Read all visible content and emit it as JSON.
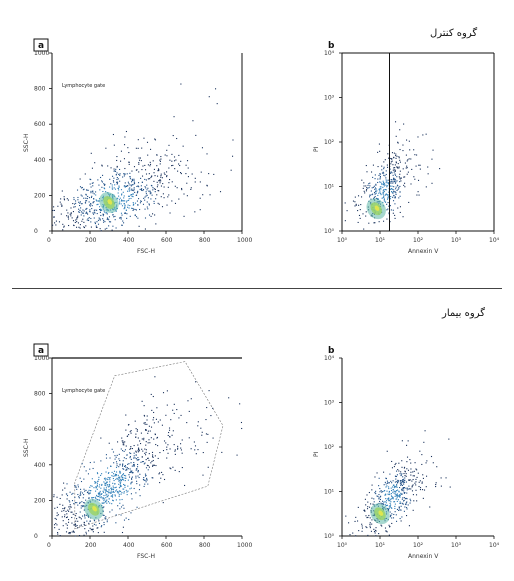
{
  "groups": [
    {
      "title": "گروه کنترل"
    },
    {
      "title": "گروه بیمار"
    }
  ],
  "chart_data": [
    {
      "type": "scatter",
      "panel_label": "a",
      "xlim": [
        0,
        1000
      ],
      "ylim": [
        0,
        1000
      ],
      "x_ticks": [
        "0",
        "200",
        "400",
        "600",
        "800",
        "1000"
      ],
      "y_ticks": [
        "0",
        "200",
        "400",
        "600",
        "800",
        "1000"
      ],
      "xlabel": "FSC-H",
      "ylabel": "SSC-H",
      "annotation": "Lymphocyte gate",
      "annotation2": "",
      "density": {
        "center": [
          330,
          180
        ],
        "spread": [
          220,
          170
        ],
        "n": 850,
        "seed": 11,
        "tilt": 0.6
      },
      "hotspot": [
        300,
        160
      ],
      "gate": null,
      "quadrants": null
    },
    {
      "type": "scatter",
      "panel_label": "b",
      "xlim": [
        0,
        4
      ],
      "ylim": [
        0,
        4
      ],
      "log": true,
      "x_ticks": [
        "10⁰",
        "10¹",
        "10²",
        "10³",
        "10⁴"
      ],
      "y_ticks": [
        "10⁰",
        "10¹",
        "10²",
        "10³",
        "10⁴"
      ],
      "xlabel": "Annexin V",
      "ylabel": "PI",
      "quadrant_labels": [
        "",
        "",
        "",
        ""
      ],
      "density": {
        "center": [
          1.1,
          0.9
        ],
        "spread": [
          0.45,
          0.55
        ],
        "n": 420,
        "seed": 23,
        "tilt": 0.5
      },
      "hotspot": [
        0.9,
        0.5
      ],
      "gate": null,
      "quadrants": {
        "x": 1.25,
        "y": 4
      }
    },
    {
      "type": "scatter",
      "panel_label": "a",
      "xlim": [
        0,
        1000
      ],
      "ylim": [
        0,
        1000
      ],
      "x_ticks": [
        "0",
        "200",
        "400",
        "600",
        "800",
        "1000"
      ],
      "y_ticks": [
        "0",
        "200",
        "400",
        "600",
        "800",
        "1000"
      ],
      "xlabel": "FSC-H",
      "ylabel": "SSC-H",
      "annotation": "Lymphocyte gate",
      "annotation2": "",
      "density": {
        "center": [
          300,
          280
        ],
        "spread": [
          230,
          230
        ],
        "n": 1000,
        "seed": 37,
        "tilt": 0.9
      },
      "hotspot": [
        220,
        150
      ],
      "gate": [
        [
          120,
          40
        ],
        [
          820,
          280
        ],
        [
          900,
          620
        ],
        [
          700,
          980
        ],
        [
          330,
          900
        ],
        [
          120,
          300
        ]
      ],
      "quadrants": null
    },
    {
      "type": "scatter",
      "panel_label": "b",
      "xlim": [
        0,
        4
      ],
      "ylim": [
        0,
        4
      ],
      "log": true,
      "x_ticks": [
        "10⁰",
        "10¹",
        "10²",
        "10³",
        "10⁴"
      ],
      "y_ticks": [
        "10⁰",
        "10¹",
        "10²",
        "10³",
        "10⁴"
      ],
      "xlabel": "Annexin V",
      "ylabel": "PI",
      "quadrant_labels": [
        "",
        "",
        "",
        ""
      ],
      "density": {
        "center": [
          1.3,
          0.9
        ],
        "spread": [
          0.5,
          0.6
        ],
        "n": 480,
        "seed": 51,
        "tilt": 0.6
      },
      "hotspot": [
        1.0,
        0.5
      ],
      "gate": null,
      "quadrants": null
    }
  ]
}
